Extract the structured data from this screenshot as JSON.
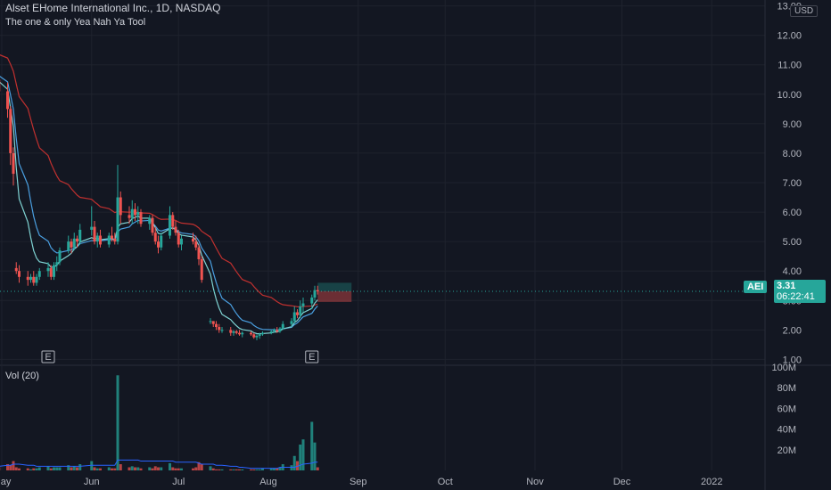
{
  "header": {
    "title": "Alset EHome International Inc., 1D, NASDAQ",
    "indicator": "The one & only Yea Nah Ya Tool"
  },
  "currency": "USD",
  "ticker": "AEI",
  "last_price": "3.31",
  "countdown": "06:22:41",
  "volume_label": "Vol (20)",
  "earnings_marker": "E",
  "colors": {
    "background": "#131722",
    "up": "#26a69a",
    "down": "#ef5350",
    "ema_fast": "#7fd3d3",
    "ema_slow": "#4a9fe0",
    "ma_long": "#c0302f",
    "vol_ma": "#2962ff",
    "grid": "#1e222d"
  },
  "chart_data": {
    "type": "candlestick",
    "y_axis": {
      "ticks": [
        "13.00",
        "12.00",
        "11.00",
        "10.00",
        "9.00",
        "8.00",
        "7.00",
        "6.00",
        "5.00",
        "4.00",
        "3.00",
        "2.00",
        "1.00"
      ],
      "range": [
        0.8,
        13.2
      ]
    },
    "volume_axis": {
      "ticks": [
        "100M",
        "80M",
        "60M",
        "40M",
        "20M"
      ],
      "range": [
        0,
        100
      ]
    },
    "x_axis": {
      "ticks": [
        "May",
        "Jun",
        "Jul",
        "Aug",
        "Sep",
        "Oct",
        "Nov",
        "Dec",
        "2022"
      ]
    },
    "earnings_dates": [
      "2021-05-17",
      "2021-08-16"
    ],
    "candles": [
      [
        "2021-04-29",
        11.1,
        11.4,
        10.2,
        10.5
      ],
      [
        "2021-04-30",
        10.5,
        10.8,
        9.9,
        10.1
      ],
      [
        "2021-05-03",
        10.1,
        10.4,
        9.2,
        9.5
      ],
      [
        "2021-05-04",
        9.5,
        9.6,
        7.6,
        8.0
      ],
      [
        "2021-05-05",
        8.0,
        8.2,
        6.9,
        7.3
      ],
      [
        "2021-05-06",
        4.1,
        4.3,
        3.9,
        4.0
      ],
      [
        "2021-05-07",
        4.0,
        4.2,
        3.6,
        3.8
      ],
      [
        "2021-05-10",
        3.8,
        4.0,
        3.5,
        3.7
      ],
      [
        "2021-05-11",
        3.7,
        3.9,
        3.6,
        3.8
      ],
      [
        "2021-05-12",
        3.8,
        4.0,
        3.5,
        3.6
      ],
      [
        "2021-05-13",
        3.6,
        3.9,
        3.5,
        3.8
      ],
      [
        "2021-05-14",
        3.8,
        4.1,
        3.7,
        4.0
      ],
      [
        "2021-05-17",
        4.0,
        4.3,
        3.8,
        4.1
      ],
      [
        "2021-05-18",
        4.1,
        4.2,
        3.7,
        3.8
      ],
      [
        "2021-05-19",
        3.8,
        4.3,
        3.7,
        4.2
      ],
      [
        "2021-05-20",
        4.2,
        4.5,
        4.0,
        4.3
      ],
      [
        "2021-05-21",
        4.3,
        4.8,
        4.2,
        4.7
      ],
      [
        "2021-05-24",
        4.7,
        5.2,
        4.6,
        5.0
      ],
      [
        "2021-05-25",
        5.0,
        5.1,
        4.6,
        4.8
      ],
      [
        "2021-05-26",
        4.8,
        5.3,
        4.7,
        5.1
      ],
      [
        "2021-05-27",
        5.1,
        5.2,
        4.8,
        5.0
      ],
      [
        "2021-05-28",
        5.0,
        5.6,
        4.9,
        5.4
      ],
      [
        "2021-06-01",
        5.4,
        6.2,
        5.2,
        5.5
      ],
      [
        "2021-06-02",
        5.5,
        5.7,
        4.9,
        5.0
      ],
      [
        "2021-06-03",
        5.0,
        5.3,
        4.8,
        5.2
      ],
      [
        "2021-06-04",
        5.2,
        5.4,
        4.8,
        4.9
      ],
      [
        "2021-06-07",
        4.9,
        5.3,
        4.8,
        5.2
      ],
      [
        "2021-06-08",
        5.2,
        5.5,
        5.0,
        5.1
      ],
      [
        "2021-06-09",
        5.1,
        5.3,
        4.9,
        5.0
      ],
      [
        "2021-06-10",
        5.0,
        7.6,
        4.9,
        6.5
      ],
      [
        "2021-06-11",
        6.5,
        6.7,
        5.6,
        5.9
      ],
      [
        "2021-06-14",
        5.9,
        6.2,
        5.6,
        5.8
      ],
      [
        "2021-06-15",
        5.8,
        6.4,
        5.6,
        6.1
      ],
      [
        "2021-06-16",
        6.1,
        6.3,
        5.7,
        5.9
      ],
      [
        "2021-06-17",
        5.9,
        6.2,
        5.6,
        6.0
      ],
      [
        "2021-06-18",
        6.0,
        6.1,
        5.5,
        5.6
      ],
      [
        "2021-06-21",
        5.6,
        5.9,
        5.4,
        5.8
      ],
      [
        "2021-06-22",
        5.8,
        5.9,
        5.2,
        5.3
      ],
      [
        "2021-06-23",
        5.3,
        5.5,
        4.9,
        5.0
      ],
      [
        "2021-06-24",
        5.0,
        5.2,
        4.6,
        4.8
      ],
      [
        "2021-06-25",
        4.8,
        5.3,
        4.7,
        5.2
      ],
      [
        "2021-06-28",
        5.2,
        6.2,
        5.1,
        5.9
      ],
      [
        "2021-06-29",
        5.9,
        6.0,
        5.4,
        5.5
      ],
      [
        "2021-06-30",
        5.5,
        5.7,
        5.2,
        5.3
      ],
      [
        "2021-07-01",
        5.3,
        5.4,
        4.8,
        4.9
      ],
      [
        "2021-07-02",
        4.9,
        5.2,
        4.7,
        5.1
      ],
      [
        "2021-07-06",
        5.1,
        5.3,
        4.9,
        5.0
      ],
      [
        "2021-07-07",
        5.0,
        5.2,
        4.7,
        4.8
      ],
      [
        "2021-07-08",
        4.8,
        4.9,
        4.2,
        4.4
      ],
      [
        "2021-07-09",
        4.4,
        4.5,
        3.6,
        3.7
      ],
      [
        "2021-07-12",
        2.3,
        2.4,
        2.2,
        2.3
      ],
      [
        "2021-07-13",
        2.3,
        2.3,
        2.1,
        2.2
      ],
      [
        "2021-07-14",
        2.2,
        2.3,
        2.0,
        2.1
      ],
      [
        "2021-07-15",
        2.1,
        2.2,
        1.9,
        2.0
      ],
      [
        "2021-07-16",
        2.0,
        2.1,
        1.9,
        2.0
      ],
      [
        "2021-07-19",
        2.0,
        2.1,
        1.8,
        1.9
      ],
      [
        "2021-07-20",
        1.9,
        2.0,
        1.8,
        1.95
      ],
      [
        "2021-07-21",
        1.95,
        2.0,
        1.85,
        1.9
      ],
      [
        "2021-07-22",
        1.9,
        2.0,
        1.8,
        1.85
      ],
      [
        "2021-07-23",
        1.85,
        1.95,
        1.75,
        1.9
      ],
      [
        "2021-07-26",
        1.9,
        1.95,
        1.8,
        1.85
      ],
      [
        "2021-07-27",
        1.85,
        1.9,
        1.7,
        1.75
      ],
      [
        "2021-07-28",
        1.75,
        1.85,
        1.65,
        1.8
      ],
      [
        "2021-07-29",
        1.8,
        1.9,
        1.7,
        1.85
      ],
      [
        "2021-07-30",
        1.85,
        1.95,
        1.8,
        1.9
      ],
      [
        "2021-08-02",
        1.9,
        2.0,
        1.85,
        1.95
      ],
      [
        "2021-08-03",
        1.95,
        2.05,
        1.9,
        2.0
      ],
      [
        "2021-08-04",
        2.0,
        2.1,
        1.9,
        1.95
      ],
      [
        "2021-08-05",
        1.95,
        2.1,
        1.9,
        2.05
      ],
      [
        "2021-08-06",
        2.05,
        2.3,
        2.0,
        2.2
      ],
      [
        "2021-08-09",
        2.2,
        2.4,
        2.1,
        2.3
      ],
      [
        "2021-08-10",
        2.3,
        2.8,
        2.2,
        2.6
      ],
      [
        "2021-08-11",
        2.6,
        2.7,
        2.4,
        2.5
      ],
      [
        "2021-08-12",
        2.5,
        3.0,
        2.4,
        2.8
      ],
      [
        "2021-08-13",
        2.8,
        3.1,
        2.6,
        2.9
      ],
      [
        "2021-08-16",
        2.9,
        3.2,
        2.7,
        3.1
      ],
      [
        "2021-08-17",
        3.1,
        3.5,
        3.0,
        3.35
      ],
      [
        "2021-08-18",
        3.35,
        3.5,
        3.2,
        3.31
      ]
    ],
    "volume": [
      4,
      3,
      6,
      5,
      9,
      3,
      2,
      2,
      1,
      2,
      2,
      3,
      4,
      2,
      3,
      3,
      3,
      5,
      3,
      4,
      3,
      6,
      9,
      3,
      2,
      2,
      3,
      2,
      2,
      92,
      6,
      3,
      4,
      3,
      3,
      2,
      3,
      2,
      4,
      3,
      3,
      7,
      3,
      2,
      2,
      2,
      2,
      3,
      8,
      6,
      4,
      2,
      1,
      1,
      1,
      1,
      1,
      1,
      1,
      1,
      1,
      1,
      1,
      1,
      2,
      2,
      2,
      2,
      3,
      6,
      5,
      14,
      9,
      25,
      30,
      47,
      27,
      3
    ],
    "vol_ma": [
      4,
      4,
      5,
      5,
      6,
      6,
      6,
      5,
      5,
      5,
      4,
      4,
      4,
      4,
      4,
      4,
      4,
      4,
      4,
      4,
      4,
      4,
      5,
      5,
      5,
      5,
      5,
      5,
      5,
      10,
      10,
      10,
      10,
      10,
      10,
      9,
      9,
      9,
      9,
      9,
      9,
      9,
      9,
      8,
      8,
      8,
      8,
      8,
      7,
      6,
      6,
      6,
      5,
      5,
      5,
      4,
      4,
      4,
      3,
      3,
      2,
      2,
      2,
      2,
      2,
      2,
      2,
      2,
      3,
      3,
      3,
      3,
      4,
      5,
      6,
      7,
      8,
      8
    ],
    "grid": true,
    "indicators": [
      "EMA fast",
      "EMA slow",
      "MA long"
    ]
  }
}
